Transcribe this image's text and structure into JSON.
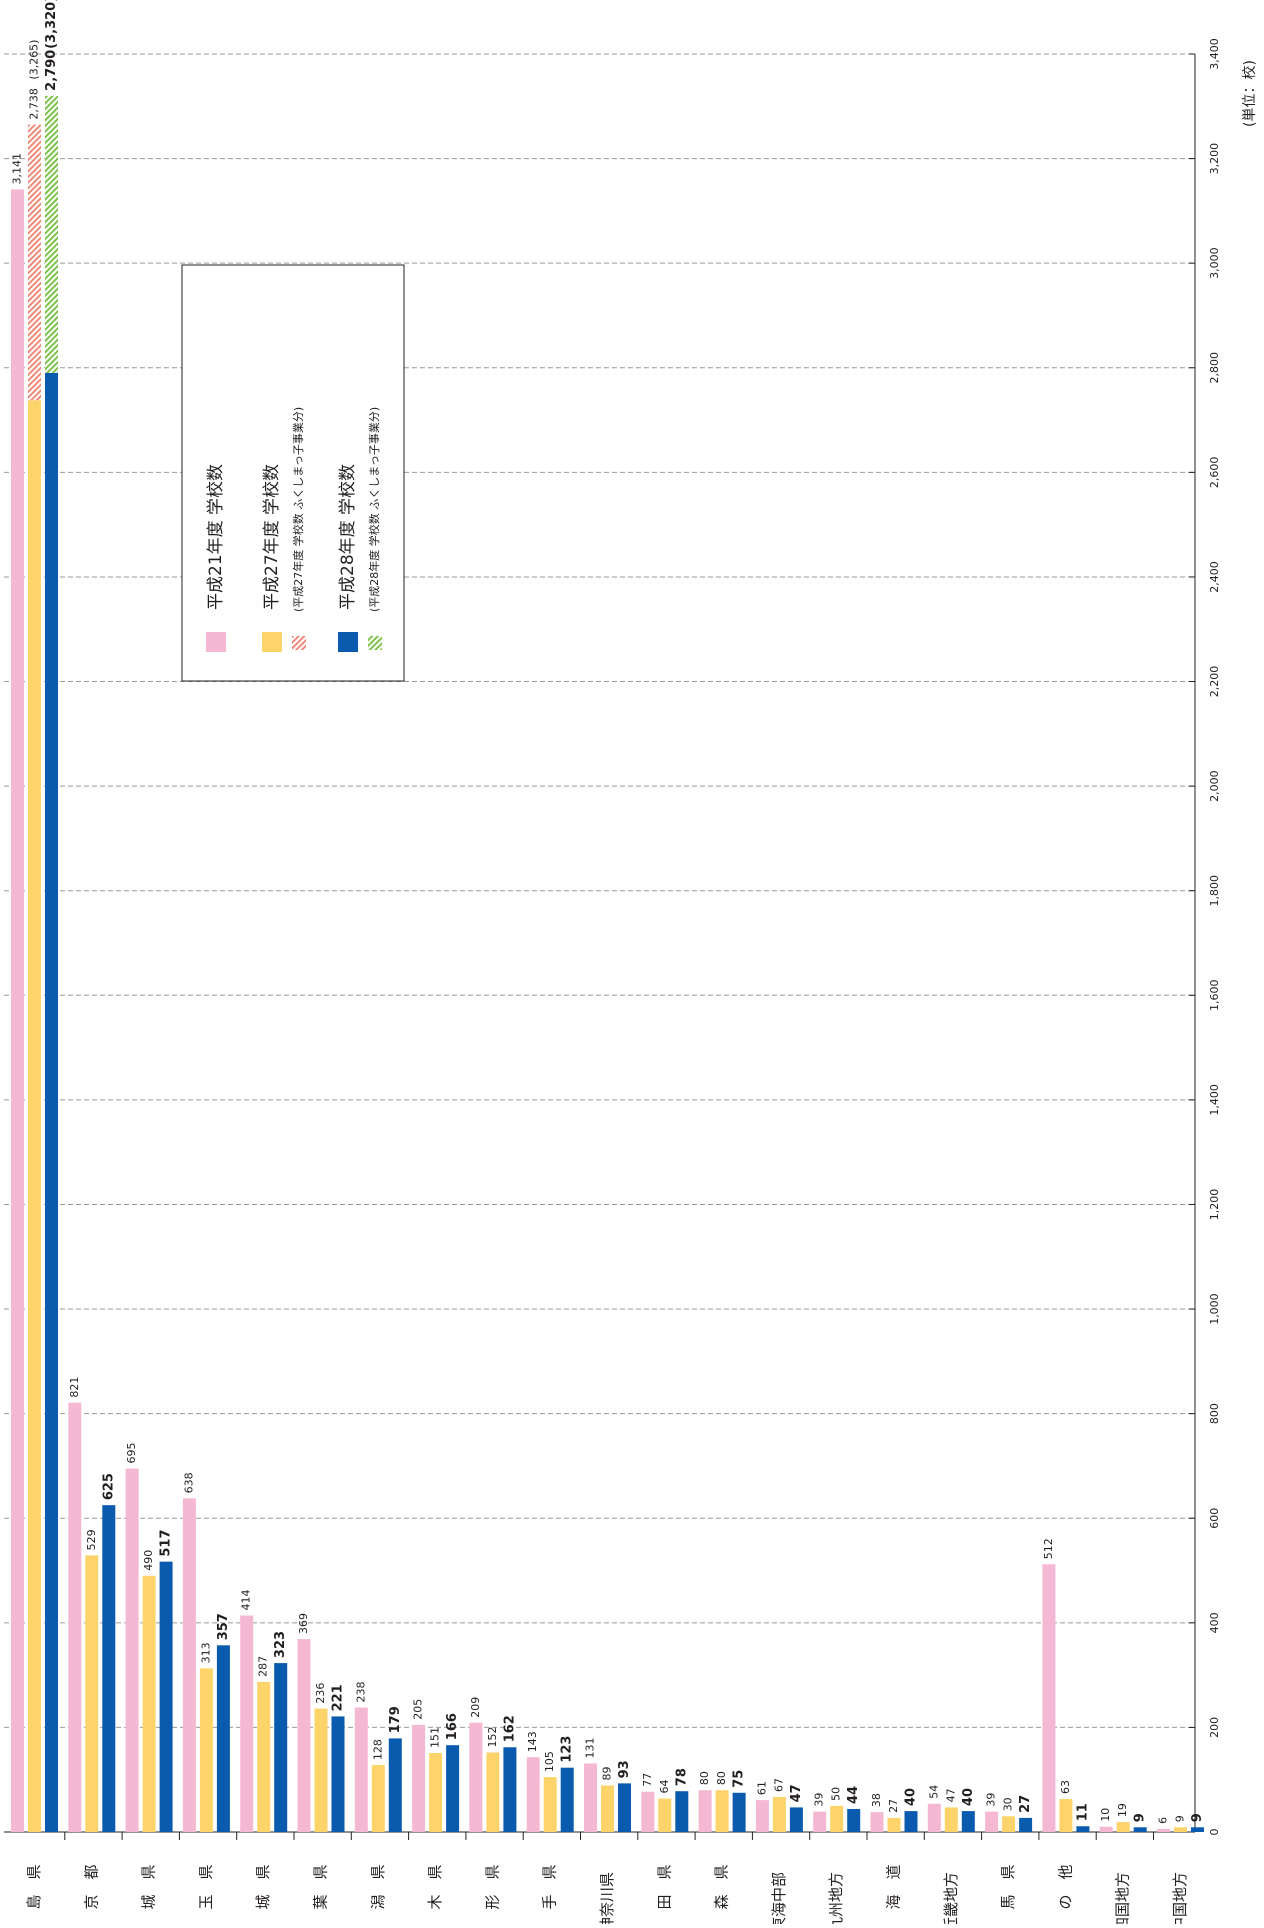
{
  "colors": {
    "h21": "#f5b8d2",
    "h27": "#fcd46a",
    "h28": "#0a5aae",
    "h27_hatch": "#f08a78",
    "h28_hatch": "#7dc24a"
  },
  "chart_data": {
    "type": "bar",
    "orientation": "horizontal",
    "unit_label": "(単位：校)",
    "xlim": [
      0,
      3400
    ],
    "x_ticks": [
      "0",
      "200",
      "400",
      "600",
      "800",
      "1,000",
      "1,200",
      "1,400",
      "1,600",
      "1,800",
      "2,000",
      "2,200",
      "2,400",
      "2,600",
      "2,800",
      "3,000",
      "3,200",
      "3,400"
    ],
    "grid": true,
    "legend_position": "upper-middle",
    "legend": {
      "h21": "平成21年度 学校数",
      "h27": "平成27年度 学校数",
      "h27_sub": "(平成27年度 学校数 ふくしまっ子事業分)",
      "h28": "平成28年度 学校数",
      "h28_sub": "(平成28年度 学校数 ふくしまっ子事業分)"
    },
    "categories": [
      "福　島　県",
      "東　京　都",
      "宮　城　県",
      "埼　玉　県",
      "茨　城　県",
      "千　葉　県",
      "新　潟　県",
      "栃　木　県",
      "山　形　県",
      "岩　手　県",
      "神奈川県",
      "秋　田　県",
      "青　森　県",
      "東海中部",
      "九州地方",
      "北　海　道",
      "近畿地方",
      "群　馬　県",
      "そ　の　他",
      "四国地方",
      "中国地方"
    ],
    "series": [
      {
        "name": "平成21年度 学校数",
        "values": [
          3141,
          821,
          695,
          638,
          414,
          369,
          238,
          205,
          209,
          143,
          131,
          77,
          80,
          61,
          39,
          38,
          54,
          39,
          512,
          10,
          6
        ],
        "labels": [
          "3,141",
          "821",
          "695",
          "638",
          "414",
          "369",
          "238",
          "205",
          "209",
          "143",
          "131",
          "77",
          "80",
          "61",
          "39",
          "38",
          "54",
          "39",
          "512",
          "10",
          "6"
        ]
      },
      {
        "name": "平成27年度 学校数",
        "values": [
          2738,
          529,
          490,
          313,
          287,
          236,
          128,
          151,
          152,
          105,
          89,
          64,
          80,
          67,
          50,
          27,
          47,
          30,
          63,
          19,
          9
        ],
        "labels": [
          "2,738",
          "529",
          "490",
          "313",
          "287",
          "236",
          "128",
          "151",
          "152",
          "105",
          "89",
          "64",
          "80",
          "67",
          "50",
          "27",
          "47",
          "30",
          "63",
          "19",
          "9"
        ],
        "hatch_total": 3265,
        "hatch_total_label": "(3,265)"
      },
      {
        "name": "平成28年度 学校数",
        "values": [
          2790,
          625,
          517,
          357,
          323,
          221,
          179,
          166,
          162,
          123,
          93,
          78,
          75,
          47,
          44,
          40,
          40,
          27,
          11,
          9,
          9
        ],
        "labels": [
          "2,790",
          "625",
          "517",
          "357",
          "323",
          "221",
          "179",
          "166",
          "162",
          "123",
          "93",
          "78",
          "75",
          "47",
          "44",
          "40",
          "40",
          "27",
          "11",
          "9",
          "9"
        ],
        "hatch_total": 3320,
        "hatch_total_label": "(3,320)"
      }
    ]
  }
}
